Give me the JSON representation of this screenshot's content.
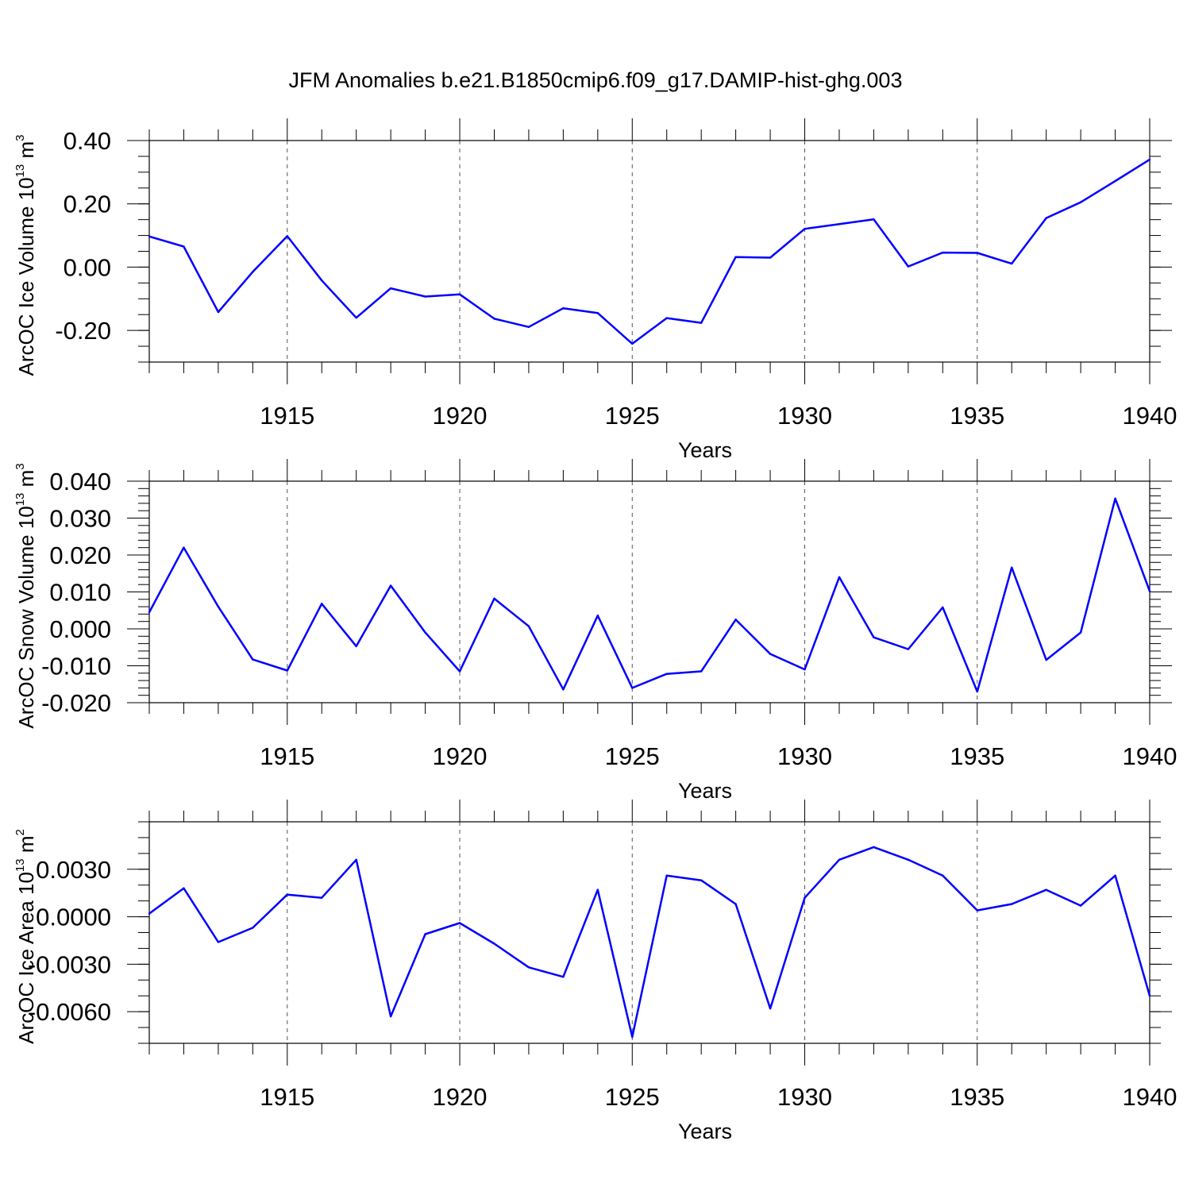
{
  "title": "JFM Anomalies b.e21.B1850cmip6.f09_g17.DAMIP-hist-ghg.003",
  "chart_data": [
    {
      "type": "line",
      "ylabel": "ArcOC Ice Volume 10",
      "ylabel_exp": "13",
      "ylabel_unit": "m",
      "ylabel_unit_exp": "3",
      "xlabel": "Years",
      "xlim": [
        1911,
        1940
      ],
      "ylim": [
        -0.3,
        0.4
      ],
      "yticks": [
        -0.2,
        0.0,
        0.2,
        0.4
      ],
      "ytick_labels": [
        "-0.20",
        "0.00",
        "0.20",
        "0.40"
      ],
      "yminor_step": 0.05,
      "xticks": [
        1915,
        1920,
        1925,
        1930,
        1935,
        1940
      ],
      "xtick_labels": [
        "1915",
        "1920",
        "1925",
        "1930",
        "1935",
        "1940"
      ],
      "color": "#0000ff",
      "x": [
        1911,
        1912,
        1913,
        1914,
        1915,
        1916,
        1917,
        1918,
        1919,
        1920,
        1921,
        1922,
        1923,
        1924,
        1925,
        1926,
        1927,
        1928,
        1929,
        1930,
        1931,
        1932,
        1933,
        1934,
        1935,
        1936,
        1937,
        1938,
        1939,
        1940
      ],
      "values": [
        0.097,
        0.065,
        -0.142,
        -0.015,
        0.098,
        -0.042,
        -0.16,
        -0.067,
        -0.093,
        -0.086,
        -0.163,
        -0.189,
        -0.13,
        -0.145,
        -0.242,
        -0.161,
        -0.176,
        0.032,
        0.03,
        0.121,
        0.136,
        0.151,
        0.002,
        0.046,
        0.045,
        0.011,
        0.155,
        0.205,
        0.272,
        0.34
      ]
    },
    {
      "type": "line",
      "ylabel": "ArcOC Snow Volume 10",
      "ylabel_exp": "13",
      "ylabel_unit": "m",
      "ylabel_unit_exp": "3",
      "xlabel": "Years",
      "xlim": [
        1911,
        1940
      ],
      "ylim": [
        -0.02,
        0.04
      ],
      "yticks": [
        -0.02,
        -0.01,
        0.0,
        0.01,
        0.02,
        0.03,
        0.04
      ],
      "ytick_labels": [
        "-0.020",
        "-0.010",
        "0.000",
        "0.010",
        "0.020",
        "0.030",
        "0.040"
      ],
      "yminor_step": 0.002,
      "xticks": [
        1915,
        1920,
        1925,
        1930,
        1935,
        1940
      ],
      "xtick_labels": [
        "1915",
        "1920",
        "1925",
        "1930",
        "1935",
        "1940"
      ],
      "color": "#0000ff",
      "x": [
        1911,
        1912,
        1913,
        1914,
        1915,
        1916,
        1917,
        1918,
        1919,
        1920,
        1921,
        1922,
        1923,
        1924,
        1925,
        1926,
        1927,
        1928,
        1929,
        1930,
        1931,
        1932,
        1933,
        1934,
        1935,
        1936,
        1937,
        1938,
        1939,
        1940
      ],
      "values": [
        0.0045,
        0.022,
        0.006,
        -0.0083,
        -0.0113,
        0.0068,
        -0.0047,
        0.0117,
        -0.001,
        -0.0115,
        0.0082,
        0.0007,
        -0.0164,
        0.0036,
        -0.016,
        -0.0122,
        -0.0115,
        0.0025,
        -0.0068,
        -0.011,
        0.014,
        -0.0023,
        -0.0055,
        0.0058,
        -0.017,
        0.0166,
        -0.0084,
        -0.001,
        0.0353,
        0.0102
      ]
    },
    {
      "type": "line",
      "ylabel": "ArcOC Ice Area 10",
      "ylabel_exp": "13",
      "ylabel_unit": "m",
      "ylabel_unit_exp": "2",
      "xlabel": "Years",
      "xlim": [
        1911,
        1940
      ],
      "ylim": [
        -0.008,
        0.006
      ],
      "yticks": [
        -0.006,
        -0.003,
        0.0,
        0.003
      ],
      "ytick_labels": [
        "-0.0060",
        "-0.0030",
        "0.0000",
        "0.0030"
      ],
      "yminor_step": 0.001,
      "xticks": [
        1915,
        1920,
        1925,
        1930,
        1935,
        1940
      ],
      "xtick_labels": [
        "1915",
        "1920",
        "1925",
        "1930",
        "1935",
        "1940"
      ],
      "color": "#0000ff",
      "x": [
        1911,
        1912,
        1913,
        1914,
        1915,
        1916,
        1917,
        1918,
        1919,
        1920,
        1921,
        1922,
        1923,
        1924,
        1925,
        1926,
        1927,
        1928,
        1929,
        1930,
        1931,
        1932,
        1933,
        1934,
        1935,
        1936,
        1937,
        1938,
        1939,
        1940
      ],
      "values": [
        0.0002,
        0.0018,
        -0.0016,
        -0.0007,
        0.0014,
        0.0012,
        0.0036,
        -0.0063,
        -0.0011,
        -0.0004,
        -0.0017,
        -0.0032,
        -0.0038,
        0.0017,
        -0.0076,
        0.0026,
        0.0023,
        0.0008,
        -0.0058,
        0.0012,
        0.0036,
        0.0044,
        0.0036,
        0.0026,
        0.0004,
        0.0008,
        0.0017,
        0.0007,
        0.0026,
        -0.005
      ]
    }
  ]
}
